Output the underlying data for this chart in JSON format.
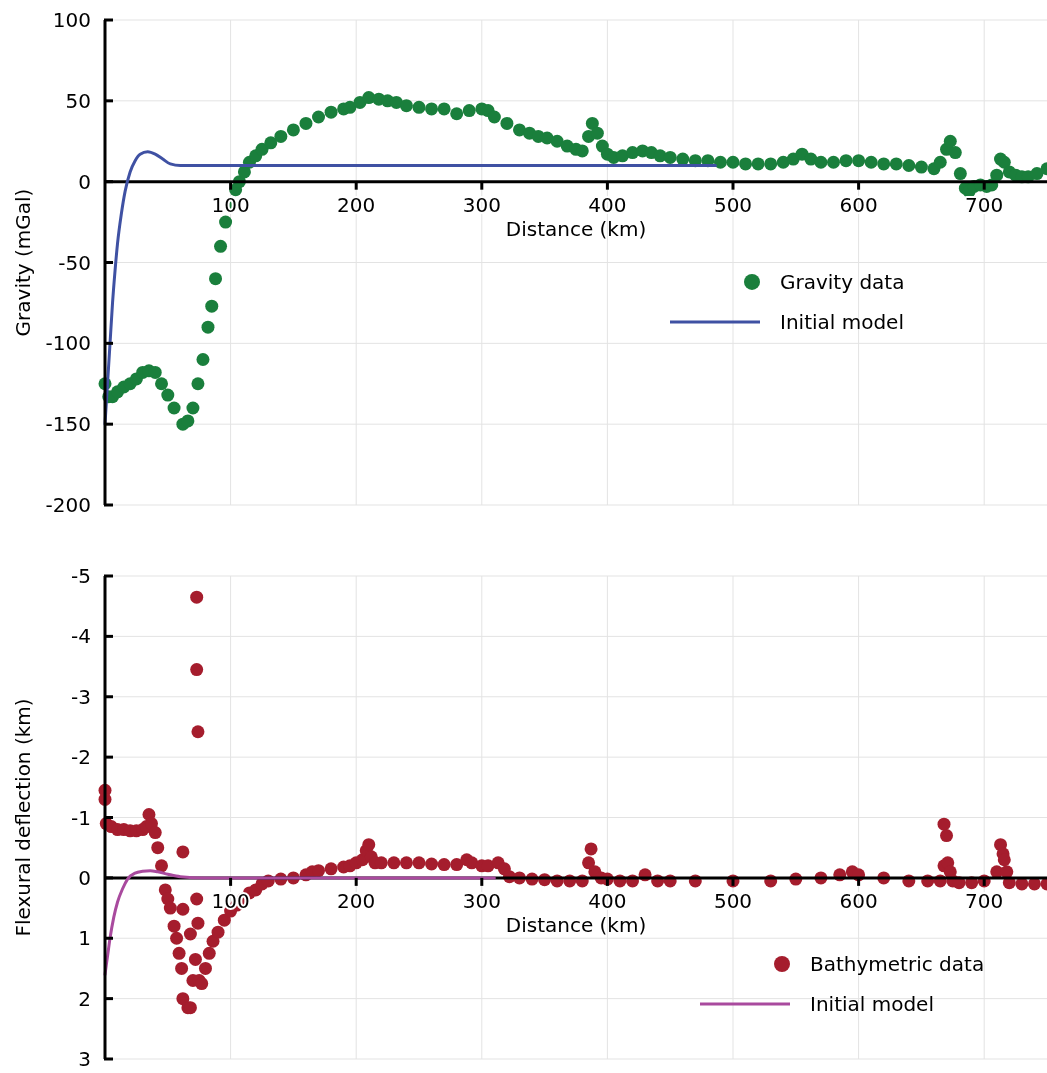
{
  "chart_data": [
    {
      "type": "scatter",
      "xlabel": "Distance (km)",
      "ylabel": "Gravity (mGal)",
      "xlim": [
        0,
        750
      ],
      "xticks": [
        100,
        200,
        300,
        400,
        500,
        600,
        700
      ],
      "ylim": [
        -200,
        100
      ],
      "yticks": [
        -200,
        -150,
        -100,
        -50,
        0,
        50,
        100
      ],
      "grid": true,
      "legend": "right",
      "series": [
        {
          "name": "Gravity data",
          "marker": "circle",
          "color": "#1a7f3c",
          "x": [
            0,
            3,
            6,
            10,
            15,
            20,
            25,
            30,
            35,
            40,
            45,
            50,
            55,
            62,
            66,
            70,
            74,
            78,
            82,
            85,
            88,
            92,
            96,
            100,
            104,
            107,
            111,
            115,
            120,
            125,
            132,
            140,
            150,
            160,
            170,
            180,
            190,
            195,
            203,
            210,
            218,
            225,
            232,
            240,
            250,
            260,
            270,
            280,
            290,
            300,
            305,
            310,
            320,
            330,
            338,
            345,
            352,
            360,
            368,
            375,
            380,
            385,
            388,
            392,
            396,
            400,
            405,
            412,
            420,
            428,
            435,
            442,
            450,
            460,
            470,
            480,
            490,
            500,
            510,
            520,
            530,
            540,
            548,
            555,
            562,
            570,
            580,
            590,
            600,
            610,
            620,
            630,
            640,
            650,
            660,
            665,
            670,
            673,
            677,
            681,
            685,
            688,
            692,
            697,
            702,
            706,
            710,
            713,
            716,
            720,
            725,
            730,
            735,
            742,
            750
          ],
          "values": [
            -125,
            -133,
            -133,
            -130,
            -127,
            -125,
            -122,
            -118,
            -117,
            -118,
            -125,
            -132,
            -140,
            -150,
            -148,
            -140,
            -125,
            -110,
            -90,
            -77,
            -60,
            -40,
            -25,
            -15,
            -5,
            0,
            6,
            12,
            16,
            20,
            24,
            28,
            32,
            36,
            40,
            43,
            45,
            46,
            49,
            52,
            51,
            50,
            49,
            47,
            46,
            45,
            45,
            42,
            44,
            45,
            44,
            40,
            36,
            32,
            30,
            28,
            27,
            25,
            22,
            20,
            19,
            28,
            36,
            30,
            22,
            17,
            15,
            16,
            18,
            19,
            18,
            16,
            15,
            14,
            13,
            13,
            12,
            12,
            11,
            11,
            11,
            12,
            14,
            17,
            14,
            12,
            12,
            13,
            13,
            12,
            11,
            11,
            10,
            9,
            8,
            12,
            20,
            25,
            18,
            5,
            -4,
            -6,
            -3,
            -2,
            -3,
            -2,
            4,
            14,
            12,
            6,
            4,
            3,
            3,
            5,
            8
          ]
        },
        {
          "name": "Initial model",
          "type": "line",
          "marker": "none",
          "color": "#3f51a3",
          "x": [
            0,
            2,
            4,
            6,
            8,
            10,
            13,
            16,
            20,
            24,
            28,
            34,
            40,
            46,
            52,
            60,
            80,
            150,
            300,
            486
          ],
          "values": [
            -150,
            -125,
            -100,
            -75,
            -55,
            -38,
            -20,
            -6,
            6,
            13,
            17,
            18.5,
            17,
            14,
            11,
            10,
            10,
            10,
            10,
            10
          ]
        }
      ]
    },
    {
      "type": "scatter",
      "xlabel": "Distance (km)",
      "ylabel": "Flexural deflection (km)",
      "xlim": [
        0,
        750
      ],
      "xticks": [
        100,
        200,
        300,
        400,
        500,
        600,
        700
      ],
      "ylim": [
        3,
        -5
      ],
      "yticks": [
        -5,
        -4,
        -3,
        -2,
        -1,
        0,
        1,
        2,
        3
      ],
      "grid": true,
      "legend": "bottom right",
      "series": [
        {
          "name": "Bathymetric data",
          "marker": "circle",
          "color": "#a51d2d",
          "x": [
            0,
            0,
            1,
            5,
            10,
            15,
            20,
            25,
            30,
            33,
            35,
            37,
            40,
            42,
            45,
            48,
            50,
            52,
            55,
            57,
            59,
            61,
            62,
            66,
            68,
            70,
            73,
            73,
            74,
            62,
            62,
            73,
            74,
            68,
            72,
            75,
            77,
            80,
            83,
            86,
            90,
            95,
            100,
            105,
            110,
            115,
            120,
            125,
            130,
            140,
            150,
            160,
            165,
            170,
            180,
            190,
            195,
            200,
            205,
            208,
            210,
            212,
            215,
            220,
            230,
            240,
            250,
            260,
            270,
            280,
            288,
            292,
            300,
            305,
            313,
            318,
            322,
            330,
            340,
            350,
            360,
            370,
            380,
            385,
            387,
            390,
            395,
            400,
            410,
            420,
            430,
            440,
            450,
            470,
            500,
            530,
            550,
            570,
            585,
            595,
            600,
            620,
            640,
            655,
            665,
            668,
            668,
            670,
            671,
            673,
            675,
            680,
            690,
            700,
            710,
            713,
            715,
            716,
            718,
            720,
            730,
            740,
            750
          ],
          "values": [
            -1.45,
            -1.3,
            -0.9,
            -0.85,
            -0.8,
            -0.8,
            -0.78,
            -0.78,
            -0.8,
            -0.85,
            -1.05,
            -0.9,
            -0.75,
            -0.5,
            -0.2,
            0.2,
            0.35,
            0.5,
            0.8,
            1.0,
            1.25,
            1.5,
            2.0,
            2.15,
            2.15,
            1.7,
            -4.65,
            -3.45,
            -2.42,
            -0.43,
            0.52,
            0.35,
            0.75,
            0.93,
            1.35,
            1.7,
            1.75,
            1.5,
            1.25,
            1.05,
            0.9,
            0.7,
            0.55,
            0.45,
            0.35,
            0.25,
            0.2,
            0.1,
            0.05,
            0.02,
            0.0,
            -0.05,
            -0.1,
            -0.12,
            -0.15,
            -0.18,
            -0.2,
            -0.25,
            -0.3,
            -0.45,
            -0.55,
            -0.35,
            -0.25,
            -0.25,
            -0.25,
            -0.25,
            -0.25,
            -0.23,
            -0.22,
            -0.22,
            -0.3,
            -0.25,
            -0.2,
            -0.2,
            -0.25,
            -0.15,
            -0.02,
            0.0,
            0.02,
            0.03,
            0.05,
            0.05,
            0.05,
            -0.25,
            -0.48,
            -0.1,
            0.0,
            0.02,
            0.05,
            0.05,
            -0.05,
            0.05,
            0.05,
            0.05,
            0.05,
            0.05,
            0.02,
            0.0,
            -0.05,
            -0.1,
            -0.05,
            0.0,
            0.05,
            0.05,
            0.05,
            -0.2,
            -0.89,
            -0.7,
            -0.25,
            -0.1,
            0.05,
            0.08,
            0.08,
            0.05,
            -0.1,
            -0.55,
            -0.4,
            -0.3,
            -0.1,
            0.08,
            0.1,
            0.1,
            0.1
          ]
        },
        {
          "name": "Initial model",
          "type": "line",
          "marker": "none",
          "color": "#a94a9e",
          "x": [
            0,
            2,
            4,
            7,
            10,
            14,
            18,
            24,
            30,
            36,
            42,
            50,
            60,
            80,
            310
          ],
          "values": [
            1.6,
            1.3,
            1.0,
            0.65,
            0.4,
            0.18,
            0.02,
            -0.08,
            -0.11,
            -0.12,
            -0.1,
            -0.06,
            -0.02,
            0,
            0
          ]
        }
      ]
    }
  ]
}
